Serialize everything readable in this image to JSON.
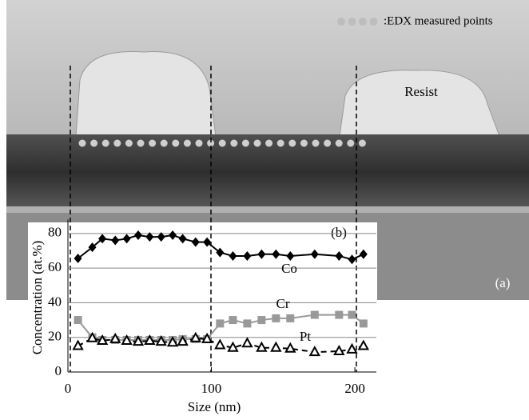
{
  "chart_data": {
    "type": "line",
    "annotations": {
      "image_label": "(a)",
      "chart_label": "(b)",
      "resist": "Resist",
      "edx": ":EDX measured points"
    },
    "xlabel": "Size (nm)",
    "ylabel": "Concentration (at.%)",
    "x": [
      7,
      17,
      24,
      33,
      41,
      49,
      57,
      65,
      73,
      80,
      89,
      97,
      106,
      115,
      125,
      135,
      145,
      155,
      172,
      189,
      198,
      206
    ],
    "series": [
      {
        "name": "Co",
        "color": "#000000",
        "marker": "diamond",
        "dashed": false,
        "values": [
          65.6,
          72,
          77,
          76,
          77,
          79,
          78,
          78,
          79,
          77,
          75,
          75,
          69,
          67,
          67,
          68,
          68,
          67,
          68,
          67,
          65,
          68
        ]
      },
      {
        "name": "Cr",
        "color": "#999999",
        "marker": "square",
        "dashed": false,
        "values": [
          30,
          20,
          18.5,
          18.5,
          18.5,
          18.5,
          18.5,
          18.5,
          18.5,
          19,
          19,
          19,
          28,
          30,
          28,
          30,
          31,
          31,
          33,
          33,
          33,
          28
        ]
      },
      {
        "name": "Pt",
        "color": "#000000",
        "marker": "triangle",
        "dashed": true,
        "values": [
          15,
          19.5,
          18,
          19,
          18,
          17.5,
          18,
          17.5,
          17,
          17.5,
          19.5,
          19,
          15.5,
          14,
          16.5,
          14,
          14,
          13.5,
          11.5,
          12,
          13,
          15
        ]
      }
    ],
    "xlim": [
      0,
      215
    ],
    "xticks": [
      0,
      100,
      200
    ],
    "ylim": [
      0,
      88
    ],
    "yticks": [
      0,
      20,
      40,
      60,
      80
    ],
    "grid": true
  }
}
